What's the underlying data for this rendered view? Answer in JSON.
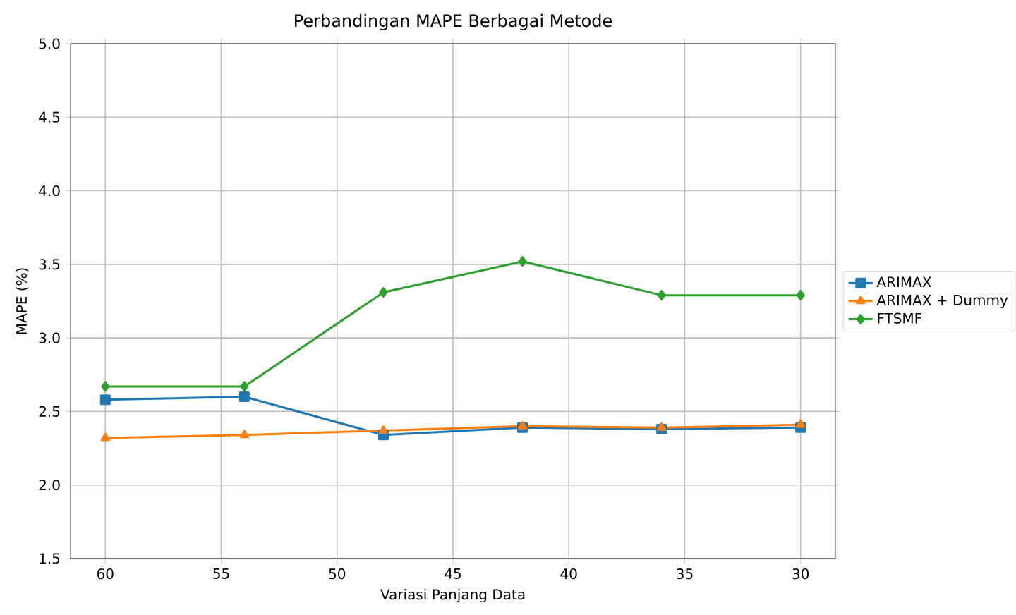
{
  "chart_data": {
    "type": "line",
    "title": "Perbandingan MAPE Berbagai Metode",
    "xlabel": "Variasi Panjang Data",
    "ylabel": "MAPE (%)",
    "x": [
      60,
      54,
      48,
      42,
      36,
      30
    ],
    "series": [
      {
        "name": "ARIMAX",
        "color": "#1f77b4",
        "marker": "square",
        "values": [
          2.58,
          2.6,
          2.34,
          2.39,
          2.38,
          2.39
        ]
      },
      {
        "name": "ARIMAX + Dummy",
        "color": "#ff7f0e",
        "marker": "triangle",
        "values": [
          2.32,
          2.34,
          2.37,
          2.4,
          2.39,
          2.41
        ]
      },
      {
        "name": "FTSMF",
        "color": "#2ca02c",
        "marker": "diamond",
        "values": [
          2.67,
          2.67,
          3.31,
          3.52,
          3.29,
          3.29
        ]
      }
    ],
    "xlim": [
      61.5,
      28.5
    ],
    "xticks": [
      60,
      55,
      50,
      45,
      40,
      35,
      30
    ],
    "ylim": [
      1.5,
      5.0
    ],
    "yticks": [
      1.5,
      {
        "value": 2,
        "label": "2.0"
      },
      2.5,
      {
        "value": 3,
        "label": "3.0"
      },
      3.5,
      {
        "value": 4,
        "label": "4.0"
      },
      4.5,
      {
        "value": 5,
        "label": "5.0"
      }
    ],
    "grid": true,
    "legend": "right"
  }
}
